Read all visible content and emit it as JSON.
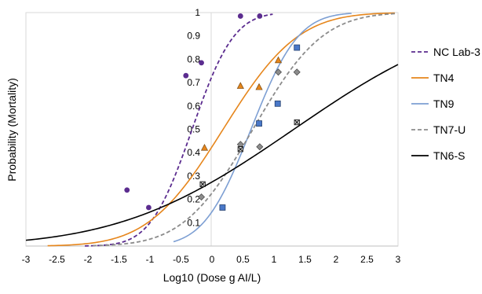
{
  "chart_data": {
    "type": "scatter",
    "xlabel": "Log10 (Dose g AI/L)",
    "ylabel": "Probability (Mortality)",
    "xlim": [
      -3,
      3
    ],
    "ylim": [
      0,
      1
    ],
    "x_ticks": [
      "-3",
      "-2.5",
      "-2",
      "-1.5",
      "-1",
      "-0.5",
      "0",
      "0.5",
      "1",
      "1.5",
      "2",
      "2.5",
      "3"
    ],
    "y_ticks": [
      "0.1",
      "0.2",
      "0.3",
      "0.4",
      "0.5",
      "0.6",
      "0.7",
      "0.8",
      "0.9",
      "1"
    ],
    "legend_position": "right",
    "series": [
      {
        "name": "NC Lab-3",
        "color": "#5b2c8f",
        "line_style": "dashed",
        "marker": "circle",
        "curve": {
          "mu": -0.32,
          "sigma": 0.53,
          "x_min": -2.05,
          "x_max": 0.98
        },
        "points": [
          [
            -1.37,
            0.24
          ],
          [
            -1.02,
            0.165
          ],
          [
            -0.42,
            0.73
          ],
          [
            -0.17,
            0.785
          ],
          [
            0.46,
            0.985
          ],
          [
            0.77,
            0.985
          ]
        ]
      },
      {
        "name": "TN4",
        "color": "#e6861c",
        "line_style": "solid",
        "marker": "triangle",
        "curve": {
          "mu": 0.18,
          "sigma": 0.95,
          "x_min": -2.65,
          "x_max": 2.95
        },
        "points": [
          [
            -0.12,
            0.42
          ],
          [
            0.46,
            0.685
          ],
          [
            0.76,
            0.68
          ],
          [
            1.07,
            0.795
          ]
        ]
      },
      {
        "name": "TN9",
        "color": "#7d9fd3",
        "line_style": "solid",
        "marker": "square",
        "curve": {
          "mu": 0.63,
          "sigma": 0.6,
          "x_min": -0.62,
          "x_max": 2.25
        },
        "points": [
          [
            0.17,
            0.165
          ],
          [
            0.76,
            0.525
          ],
          [
            1.06,
            0.61
          ],
          [
            1.37,
            0.85
          ]
        ]
      },
      {
        "name": "TN7-U",
        "color": "#8c8c8c",
        "line_style": "dashed",
        "marker": "diamond",
        "curve": {
          "mu": 0.66,
          "sigma": 0.88,
          "x_min": -1.92,
          "x_max": 2.95
        },
        "points": [
          [
            -0.17,
            0.21
          ],
          [
            0.46,
            0.435
          ],
          [
            0.77,
            0.425
          ],
          [
            1.07,
            0.745
          ],
          [
            1.37,
            0.745
          ]
        ]
      },
      {
        "name": "TN6-S",
        "color": "#000000",
        "line_style": "solid",
        "marker": "x-square",
        "curve": {
          "mu": 1.32,
          "sigma": 2.2,
          "x_min": -3.0,
          "x_max": 3.0
        },
        "points": [
          [
            -0.15,
            0.265
          ],
          [
            0.46,
            0.415
          ],
          [
            1.37,
            0.53
          ]
        ]
      }
    ]
  }
}
